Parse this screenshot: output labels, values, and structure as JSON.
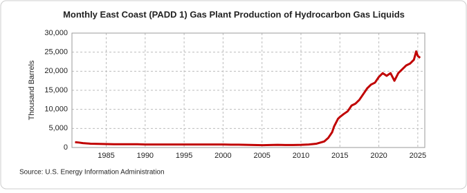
{
  "chart_data": {
    "type": "line",
    "title": "Monthly East Coast (PADD 1) Gas Plant Production of Hydrocarbon Gas Liquids",
    "y_label": "Thousand Barrels",
    "source": "Source: U.S. Energy Information Administration",
    "x": [
      1981,
      1981.5,
      1982,
      1983,
      1984,
      1985,
      1986,
      1987,
      1988,
      1989,
      1990,
      1991,
      1992,
      1993,
      1994,
      1995,
      1996,
      1997,
      1998,
      1999,
      2000,
      2001,
      2002,
      2003,
      2004,
      2005,
      2006,
      2007,
      2008,
      2009,
      2010,
      2011,
      2012,
      2012.5,
      2013,
      2013.5,
      2014,
      2014.25,
      2014.5,
      2014.75,
      2015,
      2015.5,
      2016,
      2016.5,
      2017,
      2017.5,
      2018,
      2018.5,
      2019,
      2019.5,
      2020,
      2020.5,
      2021,
      2021.5,
      2022,
      2022.5,
      2023,
      2023.5,
      2024,
      2024.5,
      2024.8,
      2025,
      2025.3
    ],
    "series": [
      {
        "name": "Gas Plant Production",
        "color": "#c00000",
        "values": [
          1400,
          1300,
          1150,
          1000,
          950,
          900,
          850,
          850,
          850,
          850,
          800,
          800,
          800,
          800,
          800,
          800,
          800,
          800,
          800,
          800,
          800,
          750,
          750,
          700,
          650,
          600,
          650,
          700,
          650,
          650,
          700,
          800,
          1000,
          1300,
          1600,
          2500,
          4000,
          5500,
          6500,
          7500,
          8000,
          8800,
          9500,
          11000,
          11500,
          12500,
          14000,
          15500,
          16500,
          17000,
          18500,
          19500,
          18800,
          19500,
          17500,
          19500,
          20500,
          21500,
          22000,
          23000,
          25200,
          24000,
          23500
        ]
      }
    ],
    "xlim": [
      1980.6,
      2025.9
    ],
    "xticks": [
      1985,
      1990,
      1995,
      2000,
      2005,
      2010,
      2015,
      2020,
      2025
    ],
    "ylim": [
      0,
      30000
    ],
    "yticks": [
      0,
      {
        "value": 5000,
        "label": "5,000"
      },
      {
        "value": 10000,
        "label": "10,000"
      },
      {
        "value": 15000,
        "label": "15,000"
      },
      {
        "value": 20000,
        "label": "20,000"
      },
      {
        "value": 25000,
        "label": "25,000"
      },
      {
        "value": 30000,
        "label": "30,000"
      }
    ],
    "grid": true
  }
}
